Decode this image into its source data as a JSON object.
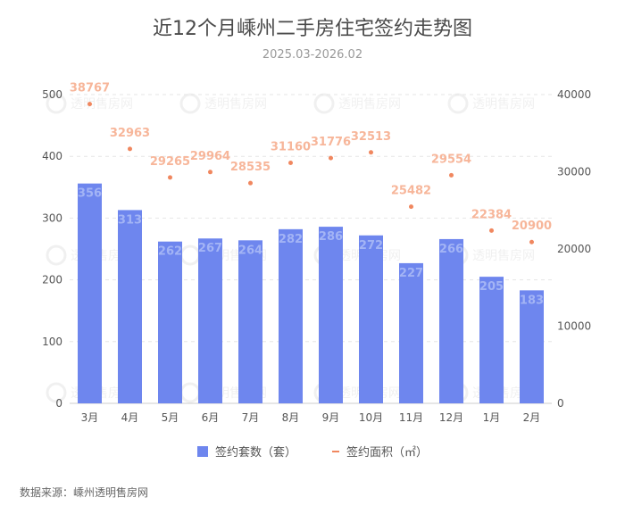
{
  "chart_data": {
    "type": "bar",
    "title": "近12个月嵊州二手房住宅签约走势图",
    "subtitle": "2025.03-2026.02",
    "categories": [
      "3月",
      "4月",
      "5月",
      "6月",
      "7月",
      "8月",
      "9月",
      "10月",
      "11月",
      "12月",
      "1月",
      "2月"
    ],
    "series": [
      {
        "name": "签约套数（套）",
        "type": "bar",
        "axis": "left",
        "values": [
          356,
          313,
          262,
          267,
          264,
          282,
          286,
          272,
          227,
          266,
          205,
          183
        ],
        "color": "#6e86ee",
        "label_color": "#a3b4f5"
      },
      {
        "name": "签约面积（㎡）",
        "type": "scatter",
        "axis": "right",
        "values": [
          38767,
          32963,
          29265,
          29964,
          28535,
          31160,
          31776,
          32513,
          25482,
          29554,
          22384,
          20900
        ],
        "color": "#f0875f",
        "label_color": "#f7b69a"
      }
    ],
    "left_axis": {
      "ticks": [
        0,
        100,
        200,
        300,
        400,
        500
      ],
      "ylim": [
        0,
        500
      ]
    },
    "right_axis": {
      "ticks": [
        0,
        10000,
        20000,
        30000,
        40000
      ],
      "ylim": [
        0,
        40000
      ]
    },
    "grid": true,
    "legend": "bottom-center"
  },
  "legend": {
    "bar_label": "签约套数（套）",
    "line_label": "签约面积（㎡）"
  },
  "source": "数据来源：嵊州透明售房网",
  "watermark": "透明售房网"
}
